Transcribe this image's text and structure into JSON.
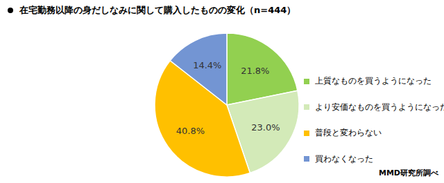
{
  "chart_data": {
    "type": "pie",
    "title": "在宅勤務以降の身だしなみに関して購入したものの変化（n=444）",
    "source": "MMD研究所調べ",
    "categories": [
      "上質なものを買うようになった",
      "より安価なものを買うようになった",
      "普段と変わらない",
      "買わなくなった"
    ],
    "values": [
      21.8,
      23.0,
      40.8,
      14.4
    ],
    "value_labels": [
      "21.8%",
      "23.0%",
      "40.8%",
      "14.4%"
    ],
    "data_labels": true,
    "colors": [
      "#92d050",
      "#d3eab8",
      "#ffc000",
      "#7395d3"
    ]
  }
}
